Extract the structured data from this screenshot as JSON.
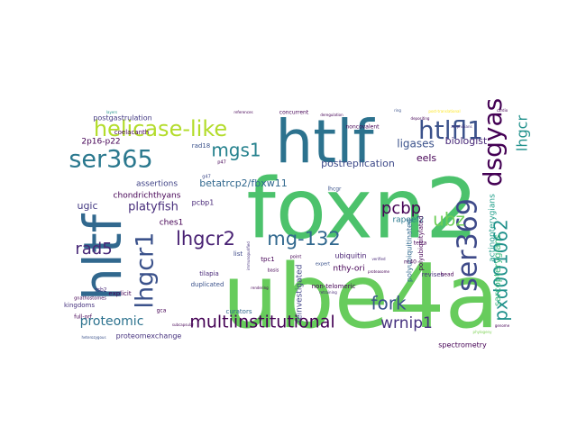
{
  "words": [
    {
      "text": "foxn2",
      "color": "#4cc26c"
    },
    {
      "text": "ube4a",
      "color": "#67cc5c"
    },
    {
      "text": "htlf",
      "color": "#2c728e"
    },
    {
      "text": "hltf",
      "color": "#31688e"
    },
    {
      "text": "helicase-like",
      "color": "#b3dc2b"
    },
    {
      "text": "htlfl1",
      "color": "#3b528b"
    },
    {
      "text": "ser365",
      "color": "#2a788e"
    },
    {
      "text": "ser369",
      "color": "#3e4a89"
    },
    {
      "text": "dsgyas",
      "color": "#440154"
    },
    {
      "text": "lhgcr",
      "color": "#21918c"
    },
    {
      "text": "lhgcr1",
      "color": "#3b528b"
    },
    {
      "text": "pxd001062",
      "color": "#21918c"
    },
    {
      "text": "mgs1",
      "color": "#26828e"
    },
    {
      "text": "multiinstitutional",
      "color": "#440154"
    },
    {
      "text": "lhgcr2",
      "color": "#482173"
    },
    {
      "text": "mg-132",
      "color": "#31688e"
    },
    {
      "text": "fork",
      "color": "#3b528b"
    },
    {
      "text": "ubz",
      "color": "#6ece58"
    },
    {
      "text": "rad5",
      "color": "#482878"
    },
    {
      "text": "pcbp",
      "color": "#440154"
    },
    {
      "text": "wrnip1",
      "color": "#46327e"
    },
    {
      "text": "proteomic",
      "color": "#2c728e"
    },
    {
      "text": "platyfish",
      "color": "#472d7b"
    },
    {
      "text": "postreplication",
      "color": "#3e4a89"
    },
    {
      "text": "ligases",
      "color": "#3b528b"
    },
    {
      "text": "biologist",
      "color": "#482878"
    },
    {
      "text": "eels",
      "color": "#440154"
    },
    {
      "text": "betatrcp2/fbxw11",
      "color": "#31688e"
    },
    {
      "text": "ugic",
      "color": "#443a83"
    },
    {
      "text": "2p16-p22",
      "color": "#440154"
    },
    {
      "text": "chondrichthyans",
      "color": "#440154"
    },
    {
      "text": "assertions",
      "color": "#414487"
    },
    {
      "text": "ches1",
      "color": "#440154"
    },
    {
      "text": "pcbp1",
      "color": "#482878"
    },
    {
      "text": "rapgef2",
      "color": "#2a788e"
    },
    {
      "text": "sarcopterygians",
      "color": "#35b779"
    },
    {
      "text": "actinopterygians",
      "color": "#1f9e89"
    },
    {
      "text": "ubiquitin",
      "color": "#482173"
    },
    {
      "text": "nthy-ori",
      "color": "#440154"
    },
    {
      "text": "polyubiquitinated",
      "color": "#31688e"
    },
    {
      "text": "polyubiquitylated",
      "color": "#440154"
    },
    {
      "text": "reinvestigated",
      "color": "#414487"
    },
    {
      "text": "non-telomeric",
      "color": "#440154"
    },
    {
      "text": "spectrometry",
      "color": "#440154"
    },
    {
      "text": "proteomexchange",
      "color": "#46327e"
    },
    {
      "text": "postgastrulation",
      "color": "#443a83"
    },
    {
      "text": "coelacanth",
      "color": "#440154"
    },
    {
      "text": "tilapia",
      "color": "#482878"
    },
    {
      "text": "duplicated",
      "color": "#3b528b"
    },
    {
      "text": "explicit",
      "color": "#440154"
    },
    {
      "text": "kingdoms",
      "color": "#46327e"
    },
    {
      "text": "full-orf",
      "color": "#440154"
    },
    {
      "text": "gnathostomes",
      "color": "#440154"
    },
    {
      "text": "curators",
      "color": "#31688e"
    },
    {
      "text": "list",
      "color": "#3e4a89"
    },
    {
      "text": "tpc1",
      "color": "#440154"
    },
    {
      "text": "revises",
      "color": "#472d7b"
    },
    {
      "text": "tetra",
      "color": "#440154"
    },
    {
      "text": "head",
      "color": "#440154"
    },
    {
      "text": "rad18",
      "color": "#3b528b"
    },
    {
      "text": "gca",
      "color": "#440154"
    },
    {
      "text": "concurrent",
      "color": "#440154"
    },
    {
      "text": "noncovalent",
      "color": "#440154"
    },
    {
      "text": "layers",
      "color": "#21918c"
    },
    {
      "text": "references",
      "color": "#440154"
    },
    {
      "text": "post-translational",
      "color": "#fde725"
    },
    {
      "text": "lhcgr",
      "color": "#3b528b"
    },
    {
      "text": "rsb2",
      "color": "#482878"
    },
    {
      "text": "nr40",
      "color": "#440154"
    },
    {
      "text": "expert",
      "color": "#3b528b"
    },
    {
      "text": "point",
      "color": "#440154"
    },
    {
      "text": "basis",
      "color": "#440154"
    },
    {
      "text": "p47",
      "color": "#440154"
    },
    {
      "text": "retraining",
      "color": "#482878"
    },
    {
      "text": "g47",
      "color": "#3e4a89"
    },
    {
      "text": "immunopurified",
      "color": "#46327e"
    },
    {
      "text": "subcapsular",
      "color": "#440154"
    },
    {
      "text": "rendering",
      "color": "#440154"
    },
    {
      "text": "phylogeny",
      "color": "#7ad151"
    },
    {
      "text": "genome",
      "color": "#440154"
    },
    {
      "text": "heterozygous",
      "color": "#3b528b"
    },
    {
      "text": "amphibians",
      "color": "#46327e"
    },
    {
      "text": "proteasome",
      "color": "#440154"
    },
    {
      "text": "verified",
      "color": "#482878"
    },
    {
      "text": "depositing",
      "color": "#440154"
    },
    {
      "text": "ring",
      "color": "#3b528b"
    },
    {
      "text": "cardio",
      "color": "#440154"
    },
    {
      "text": "deregulation",
      "color": "#440154"
    }
  ]
}
